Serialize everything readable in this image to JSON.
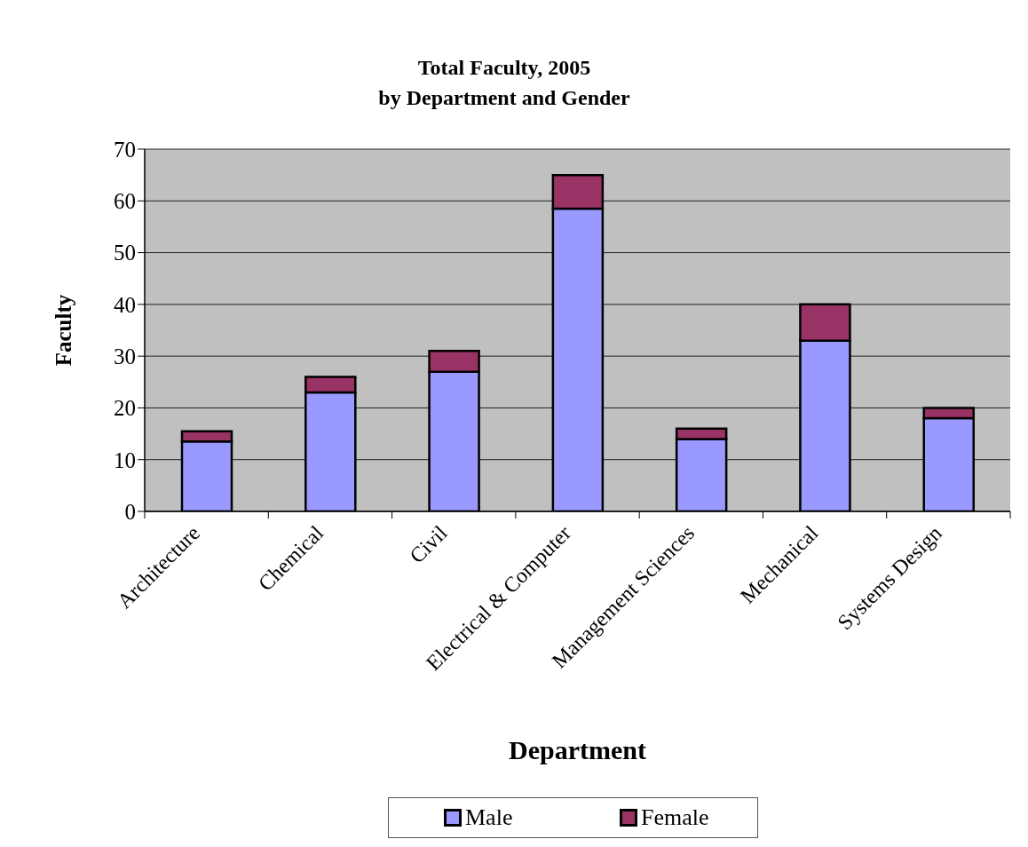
{
  "chart_data": {
    "type": "bar",
    "title": "Total Faculty, 2005",
    "subtitle": "by Department and Gender",
    "xlabel": "Department",
    "ylabel": "Faculty",
    "categories": [
      "Architecture",
      "Chemical",
      "Civil",
      "Electrical & Computer",
      "Management Sciences",
      "Mechanical",
      "Systems Design"
    ],
    "series": [
      {
        "name": "Male",
        "color": "#9999ff",
        "values": [
          13.5,
          23,
          27,
          58.5,
          14,
          33,
          18
        ]
      },
      {
        "name": "Female",
        "color": "#993366",
        "values": [
          2,
          3,
          4,
          6.5,
          2,
          7,
          2
        ]
      }
    ],
    "stacked": true,
    "ylim": [
      0,
      70
    ],
    "yticks": [
      0,
      10,
      20,
      30,
      40,
      50,
      60,
      70
    ],
    "grid": "y",
    "legend": "bottom"
  }
}
